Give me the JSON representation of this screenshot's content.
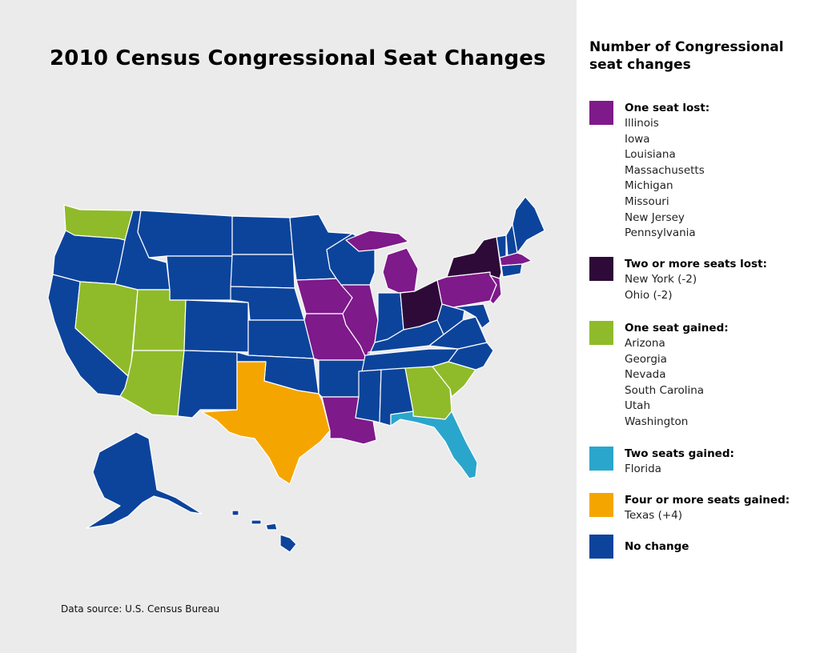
{
  "title": "2010 Census Congressional Seat Changes",
  "source": "Data source: U.S. Census Bureau",
  "legend": {
    "title": "Number of Congressional seat changes",
    "groups": [
      {
        "label": "One seat lost:",
        "color": "#7e1a8a",
        "items": [
          "Illinois",
          "Iowa",
          "Louisiana",
          "Massachusetts",
          "Michigan",
          "Missouri",
          "New Jersey",
          "Pennsylvania"
        ]
      },
      {
        "label": "Two or more seats lost:",
        "color": "#2d0a38",
        "items": [
          "New York (-2)",
          "Ohio (-2)"
        ]
      },
      {
        "label": "One seat gained:",
        "color": "#8fbb2a",
        "items": [
          "Arizona",
          "Georgia",
          "Nevada",
          "South Carolina",
          "Utah",
          "Washington"
        ]
      },
      {
        "label": "Two seats gained:",
        "color": "#2aa6cc",
        "items": [
          "Florida"
        ]
      },
      {
        "label": "Four or more seats gained:",
        "color": "#f5a500",
        "items": [
          "Texas (+4)"
        ]
      },
      {
        "label": "No change",
        "color": "#0c449c",
        "items": []
      }
    ]
  },
  "map_colors": {
    "one_lost": "#7e1a8a",
    "two_lost": "#2d0a38",
    "one_gained": "#8fbb2a",
    "two_gained": "#2aa6cc",
    "four_gained": "#f5a500",
    "no_change": "#0c449c",
    "border": "#ffffff"
  }
}
